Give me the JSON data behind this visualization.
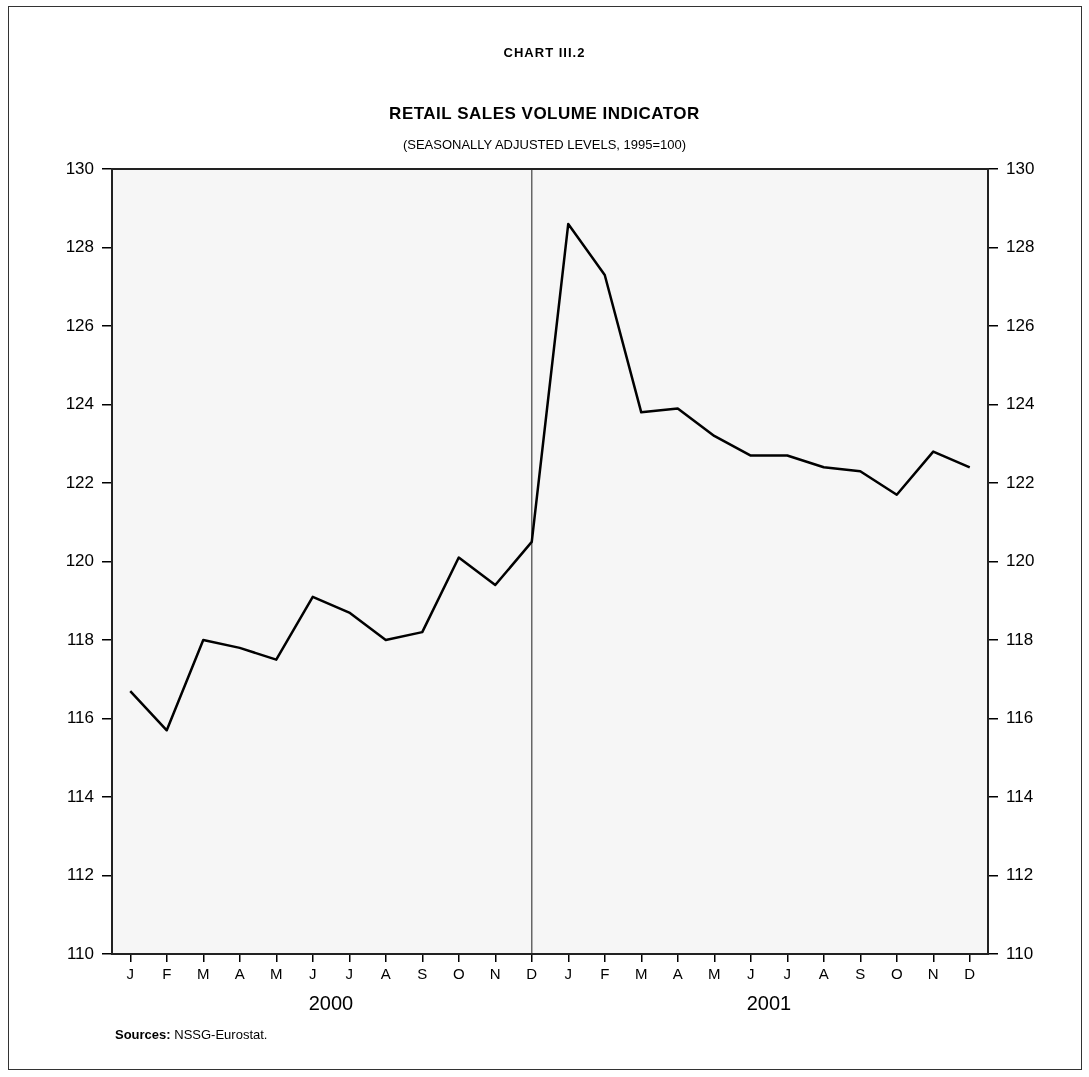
{
  "chart_data": {
    "type": "line",
    "title": "RETAIL SALES VOLUME INDICATOR",
    "subtitle": "(SEASONALLY ADJUSTED LEVELS, 1995=100)",
    "categories": [
      "J",
      "F",
      "M",
      "A",
      "M",
      "J",
      "J",
      "A",
      "S",
      "O",
      "N",
      "D",
      "J",
      "F",
      "M",
      "A",
      "M",
      "J",
      "J",
      "A",
      "S",
      "O",
      "N",
      "D"
    ],
    "series": [
      {
        "color": "#000000",
        "values": [
          116.7,
          115.7,
          118.0,
          117.8,
          117.5,
          119.1,
          118.7,
          118.0,
          118.2,
          120.1,
          119.4,
          120.5,
          128.6,
          127.3,
          123.8,
          123.9,
          123.2,
          122.7,
          122.7,
          122.4,
          122.3,
          121.7,
          122.8,
          122.4
        ]
      }
    ],
    "ylim": [
      110,
      130
    ],
    "yticks": [
      110,
      112,
      114,
      116,
      118,
      120,
      122,
      124,
      126,
      128,
      130
    ],
    "y2lim": [
      110,
      130
    ],
    "y2ticks": [
      110,
      112,
      114,
      116,
      118,
      120,
      122,
      124,
      126,
      128,
      130
    ],
    "ref_lines": [
      {
        "axis": "x",
        "value": "D",
        "color": "#666666"
      }
    ],
    "annotations": [
      "CHART III.2",
      "2000",
      "2001",
      "Sources: NSSG-Eurostat."
    ],
    "grid": false,
    "legend": false,
    "marker": "none",
    "line_style": "solid"
  }
}
